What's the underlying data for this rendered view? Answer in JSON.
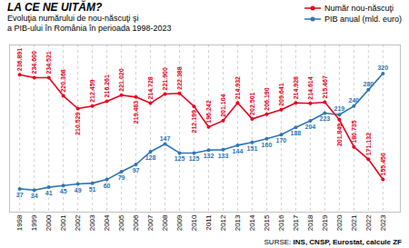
{
  "chart_data": {
    "type": "line",
    "title": "LA CE NE UITĂM?",
    "subtitle": [
      "Evoluţia numărului de nou-născuţi şi",
      "a PIB-ului în România în perioada 1998-2023"
    ],
    "annotations": [
      "SURSE:",
      "INS, CNSP, Eurostat, calcule ZF"
    ],
    "x": [
      1998,
      1999,
      2000,
      2001,
      2002,
      2003,
      2004,
      2005,
      2006,
      2007,
      2008,
      2009,
      2010,
      2011,
      2012,
      2013,
      2014,
      2015,
      2016,
      2017,
      2018,
      2019,
      2020,
      2021,
      2022,
      2023
    ],
    "xlim": [
      1997.3,
      2024.2
    ],
    "xticks": [
      1998,
      1999,
      2000,
      2001,
      2002,
      2003,
      2004,
      2005,
      2006,
      2007,
      2008,
      2009,
      2010,
      2011,
      2012,
      2013,
      2014,
      2015,
      2016,
      2017,
      2018,
      2019,
      2020,
      2021,
      2022,
      2023
    ],
    "ylim": [
      130000,
      260000
    ],
    "y2lim": [
      -20,
      390
    ],
    "tick_labels": "x",
    "grid": "x",
    "legend": "top-right",
    "data_labels": true,
    "series": [
      {
        "name": "Număr nou-născuţi",
        "color": "#e8001c",
        "marker": "circle",
        "values": [
          236891,
          234600,
          234521,
          220368,
          210529,
          212459,
          216261,
          221020,
          219483,
          214728,
          221900,
          222388,
          212199,
          196242,
          201104,
          214932,
          202501,
          206190,
          209641,
          214928,
          214614,
          215467,
          201849,
          180735,
          171132,
          155450
        ],
        "value_labels": [
          "236.891",
          "234.600",
          "234.521",
          "220.368",
          "210.529",
          "212.459",
          "216.261",
          "221.020",
          "219.483",
          "214.728",
          "221.900",
          "222.388",
          "212.199",
          "196.242",
          "201.104",
          "214.932",
          "202.501",
          "206.190",
          "209.641",
          "214.928",
          "214.614",
          "215.467",
          "201.849",
          "180.735",
          "171.132",
          "155.450"
        ]
      },
      {
        "name": "PIB anual (mld. euro)",
        "color": "#2e75b6",
        "marker": "circle",
        "axis": "y2",
        "values": [
          37,
          34,
          41,
          45,
          49,
          51,
          60,
          79,
          97,
          128,
          147,
          125,
          125,
          132,
          133,
          144,
          151,
          160,
          170,
          188,
          204,
          223,
          219,
          240,
          280,
          320
        ]
      }
    ]
  }
}
